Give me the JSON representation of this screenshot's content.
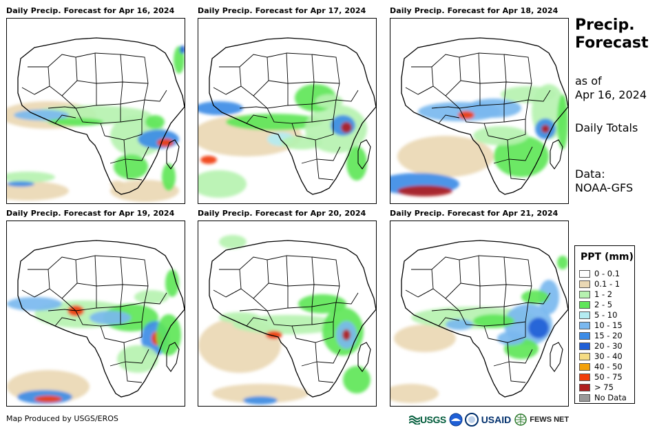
{
  "panels": [
    {
      "title": "Daily Precip. Forecast for Apr 16, 2024"
    },
    {
      "title": "Daily Precip. Forecast for Apr 17, 2024"
    },
    {
      "title": "Daily Precip. Forecast for Apr 18, 2024"
    },
    {
      "title": "Daily Precip. Forecast for Apr 19, 2024"
    },
    {
      "title": "Daily Precip. Forecast for Apr 20, 2024"
    },
    {
      "title": "Daily Precip. Forecast for Apr 21, 2024"
    }
  ],
  "sidebar": {
    "title_line1": "Precip.",
    "title_line2": "Forecast",
    "asof_line1": "as of",
    "asof_line2": "Apr 16, 2024",
    "totals": "Daily Totals",
    "data_label": "Data:",
    "data_source": "NOAA-GFS"
  },
  "legend": {
    "title": "PPT (mm)",
    "items": [
      {
        "label": "0 - 0.1",
        "color": "#ffffff"
      },
      {
        "label": "0.1 - 1",
        "color": "#ead8b4"
      },
      {
        "label": "1 - 2",
        "color": "#b6f2b0"
      },
      {
        "label": "2 - 5",
        "color": "#5fe659"
      },
      {
        "label": "5 - 10",
        "color": "#b4ecf2"
      },
      {
        "label": "10 - 15",
        "color": "#7ab8ef"
      },
      {
        "label": "15 - 20",
        "color": "#3d8ce6"
      },
      {
        "label": "20 - 30",
        "color": "#1f5fd6"
      },
      {
        "label": "30 - 40",
        "color": "#f5dc82"
      },
      {
        "label": "40 - 50",
        "color": "#f2a00a"
      },
      {
        "label": "50 - 75",
        "color": "#f03c0a"
      },
      {
        "label": "> 75",
        "color": "#b01e1e"
      },
      {
        "label": "No Data",
        "color": "#999999"
      }
    ]
  },
  "footer": {
    "credit": "Map Produced by USGS/EROS",
    "logo_usgs": "USGS",
    "logo_usaid": "USAID",
    "logo_fews": "FEWS NET"
  }
}
